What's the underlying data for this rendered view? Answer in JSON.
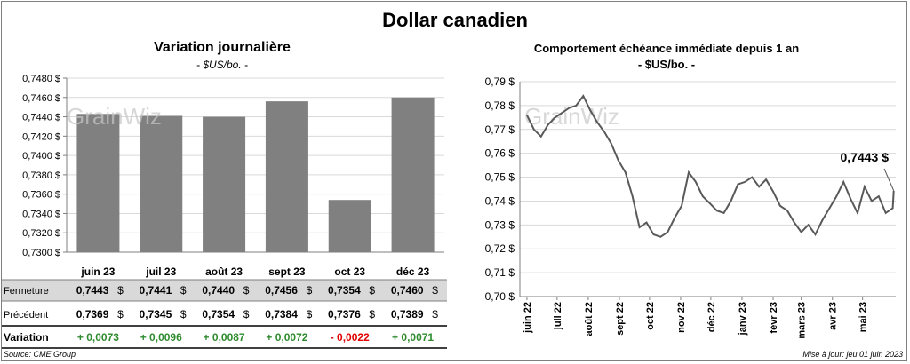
{
  "title": "Dollar canadien",
  "left_panel": {
    "title": "Variation  journalière",
    "subtitle": "- $US/bo. -",
    "table": {
      "rows": [
        {
          "label": "Fermeture",
          "values": [
            "0,7443",
            "0,7441",
            "0,7440",
            "0,7456",
            "0,7354",
            "0,7460"
          ],
          "suffix": "$"
        },
        {
          "label": "Précédent",
          "values": [
            "0,7369",
            "0,7345",
            "0,7354",
            "0,7384",
            "0,7376",
            "0,7389"
          ],
          "suffix": "$"
        },
        {
          "label": "Variation",
          "values": [
            "+ 0,0073",
            "+ 0,0096",
            "+ 0,0087",
            "+ 0,0072",
            "- 0,0022",
            "+ 0,0071"
          ]
        }
      ],
      "positive_color": "#2e8b2e",
      "negative_color": "#e00000"
    }
  },
  "right_panel": {
    "title": "Comportement échéance immédiate depuis 1 an",
    "subtitle": "- $US/bo. -",
    "last_label": "0,7443 $"
  },
  "footer": {
    "source": "Source: CME Group",
    "update": "Mise à jour: jeu 01 juin 2023"
  },
  "watermark": "GrainWiz",
  "chart_data": [
    {
      "type": "bar",
      "title": "Variation  journalière",
      "categories": [
        "juin 23",
        "juil 23",
        "août 23",
        "sept 23",
        "oct 23",
        "déc 23"
      ],
      "values": [
        0.7443,
        0.7441,
        0.744,
        0.7456,
        0.7354,
        0.746
      ],
      "ylim": [
        0.73,
        0.748
      ],
      "yticks": [
        "0,7300 $",
        "0,7320 $",
        "0,7340 $",
        "0,7360 $",
        "0,7380 $",
        "0,7400 $",
        "0,7420 $",
        "0,7440 $",
        "0,7460 $",
        "0,7480 $"
      ],
      "bar_color": "#808080",
      "grid": true
    },
    {
      "type": "line",
      "title": "Comportement échéance immédiate depuis 1 an",
      "ylim": [
        0.7,
        0.79
      ],
      "yticks": [
        "0,70 $",
        "0,71 $",
        "0,72 $",
        "0,73 $",
        "0,74 $",
        "0,75 $",
        "0,76 $",
        "0,77 $",
        "0,78 $",
        "0,79 $"
      ],
      "xticks": [
        "juin 22",
        "juil 22",
        "août 22",
        "sept 22",
        "oct 22",
        "nov 22",
        "déc 22",
        "janv 23",
        "févr 23",
        "mars 23",
        "avr 23",
        "mai 23"
      ],
      "x": [
        "2022-06-01",
        "2022-06-08",
        "2022-06-15",
        "2022-06-22",
        "2022-06-29",
        "2022-07-06",
        "2022-07-13",
        "2022-07-20",
        "2022-07-27",
        "2022-08-03",
        "2022-08-10",
        "2022-08-17",
        "2022-08-24",
        "2022-08-31",
        "2022-09-07",
        "2022-09-14",
        "2022-09-21",
        "2022-09-28",
        "2022-10-05",
        "2022-10-12",
        "2022-10-19",
        "2022-10-26",
        "2022-11-02",
        "2022-11-09",
        "2022-11-16",
        "2022-11-23",
        "2022-11-30",
        "2022-12-07",
        "2022-12-14",
        "2022-12-21",
        "2022-12-28",
        "2023-01-04",
        "2023-01-11",
        "2023-01-18",
        "2023-01-25",
        "2023-02-01",
        "2023-02-08",
        "2023-02-15",
        "2023-02-22",
        "2023-03-01",
        "2023-03-08",
        "2023-03-15",
        "2023-03-22",
        "2023-03-29",
        "2023-04-05",
        "2023-04-12",
        "2023-04-19",
        "2023-04-26",
        "2023-05-03",
        "2023-05-10",
        "2023-05-17",
        "2023-05-24",
        "2023-05-31",
        "2023-06-01"
      ],
      "y": [
        0.776,
        0.77,
        0.767,
        0.772,
        0.775,
        0.777,
        0.779,
        0.78,
        0.784,
        0.778,
        0.773,
        0.769,
        0.764,
        0.757,
        0.752,
        0.742,
        0.729,
        0.731,
        0.726,
        0.725,
        0.727,
        0.733,
        0.738,
        0.752,
        0.748,
        0.742,
        0.739,
        0.736,
        0.735,
        0.74,
        0.747,
        0.748,
        0.75,
        0.746,
        0.749,
        0.744,
        0.738,
        0.736,
        0.731,
        0.727,
        0.73,
        0.726,
        0.732,
        0.737,
        0.742,
        0.748,
        0.741,
        0.735,
        0.746,
        0.74,
        0.742,
        0.735,
        0.737,
        0.7443
      ],
      "line_color": "#595959",
      "grid": true
    }
  ]
}
